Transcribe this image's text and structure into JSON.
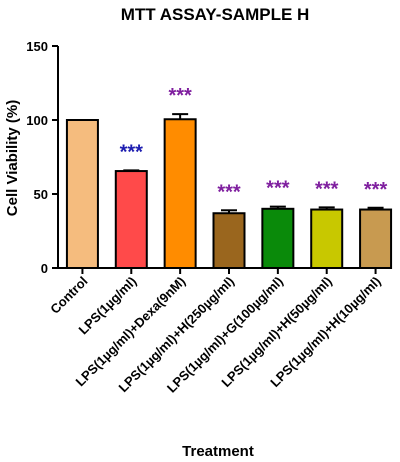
{
  "chart_data": {
    "type": "bar",
    "title": "MTT ASSAY-SAMPLE H",
    "xlabel": "Treatment",
    "ylabel": "Cell Viability (%)",
    "ylim": [
      0,
      150
    ],
    "yticks": [
      0,
      50,
      100,
      150
    ],
    "categories": [
      "Control",
      "LPS(1µg/ml)",
      "LPS(1µg/ml)+Dexa(9nM)",
      "LPS(1µg/ml)+H(250µg/ml)",
      "LPS(1µg/ml)+G(100µg/ml)",
      "LPS(1µg/ml)+H(50µg/ml)",
      "LPS(1µg/ml)+H(10µg/ml)"
    ],
    "values": [
      100,
      65.5,
      100.5,
      37,
      40,
      39.5,
      39.5
    ],
    "errors": [
      0,
      0.5,
      3.5,
      2,
      1.5,
      1.5,
      1.2
    ],
    "colors": [
      "#f5bc7e",
      "#ff4a4a",
      "#ff8c00",
      "#9a661e",
      "#0a8a0a",
      "#c8c800",
      "#c89a50"
    ],
    "significance": [
      "",
      "***",
      "***",
      "***",
      "***",
      "***",
      "***"
    ],
    "significance_colors": [
      "",
      "#1c1cb0",
      "#7f1f9f",
      "#7f1f9f",
      "#7f1f9f",
      "#7f1f9f",
      "#7f1f9f"
    ]
  }
}
